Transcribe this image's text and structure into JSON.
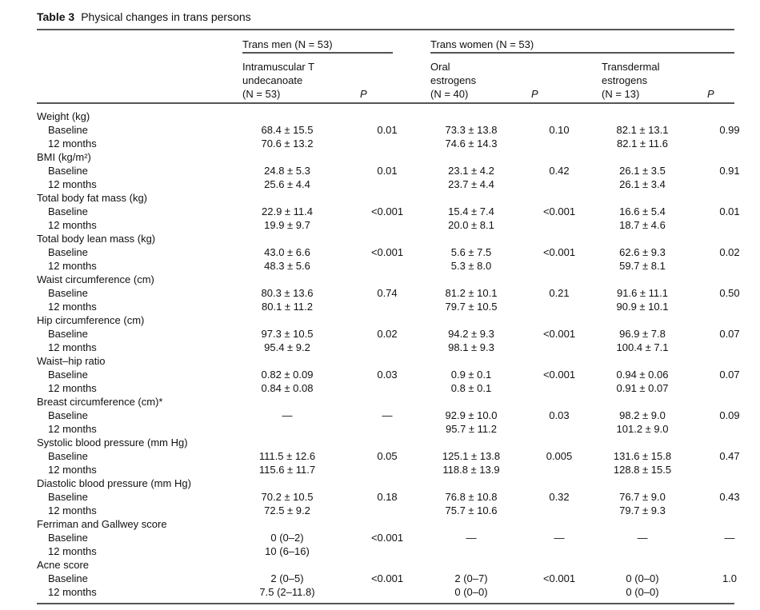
{
  "title": {
    "number": "Table 3",
    "text": "Physical changes in trans persons"
  },
  "header": {
    "group_trans_men": "Trans men (N = 53)",
    "group_trans_women": "Trans women (N = 53)",
    "col_tm": [
      "Intramuscular T",
      "undecanoate",
      "(N = 53)"
    ],
    "col_oral": [
      "Oral",
      "estrogens",
      "(N = 40)"
    ],
    "col_td": [
      "Transdermal",
      "estrogens",
      "(N = 13)"
    ],
    "p_label": "P"
  },
  "groups": [
    {
      "label": "Weight (kg)",
      "rows": [
        {
          "label": "Baseline",
          "values": [
            "68.4 ± 15.5",
            "0.01",
            "73.3 ± 13.8",
            "0.10",
            "82.1 ± 13.1",
            "0.99"
          ]
        },
        {
          "label": "12 months",
          "values": [
            "70.6 ± 13.2",
            "",
            "74.6 ± 14.3",
            "",
            "82.1 ± 11.6",
            ""
          ]
        }
      ]
    },
    {
      "label": "BMI (kg/m²)",
      "rows": [
        {
          "label": "Baseline",
          "values": [
            "24.8 ± 5.3",
            "0.01",
            "23.1 ± 4.2",
            "0.42",
            "26.1 ± 3.5",
            "0.91"
          ]
        },
        {
          "label": "12 months",
          "values": [
            "25.6 ± 4.4",
            "",
            "23.7 ± 4.4",
            "",
            "26.1 ± 3.4",
            ""
          ]
        }
      ]
    },
    {
      "label": "Total body fat mass (kg)",
      "rows": [
        {
          "label": "Baseline",
          "values": [
            "22.9 ± 11.4",
            "<0.001",
            "15.4 ± 7.4",
            "<0.001",
            "16.6 ± 5.4",
            "0.01"
          ]
        },
        {
          "label": "12 months",
          "values": [
            "19.9 ± 9.7",
            "",
            "20.0 ± 8.1",
            "",
            "18.7 ± 4.6",
            ""
          ]
        }
      ]
    },
    {
      "label": "Total body lean mass (kg)",
      "rows": [
        {
          "label": "Baseline",
          "values": [
            "43.0 ± 6.6",
            "<0.001",
            "5.6 ± 7.5",
            "<0.001",
            "62.6 ± 9.3",
            "0.02"
          ]
        },
        {
          "label": "12 months",
          "values": [
            "48.3 ± 5.6",
            "",
            "5.3 ± 8.0",
            "",
            "59.7 ± 8.1",
            ""
          ]
        }
      ]
    },
    {
      "label": "Waist circumference (cm)",
      "rows": [
        {
          "label": "Baseline",
          "values": [
            "80.3 ± 13.6",
            "0.74",
            "81.2 ± 10.1",
            "0.21",
            "91.6 ± 11.1",
            "0.50"
          ]
        },
        {
          "label": "12 months",
          "values": [
            "80.1 ± 11.2",
            "",
            "79.7 ± 10.5",
            "",
            "90.9 ± 10.1",
            ""
          ]
        }
      ]
    },
    {
      "label": "Hip circumference (cm)",
      "rows": [
        {
          "label": "Baseline",
          "values": [
            "97.3 ± 10.5",
            "0.02",
            "94.2 ± 9.3",
            "<0.001",
            "96.9 ± 7.8",
            "0.07"
          ]
        },
        {
          "label": "12 months",
          "values": [
            "95.4 ± 9.2",
            "",
            "98.1 ± 9.3",
            "",
            "100.4 ± 7.1",
            ""
          ]
        }
      ]
    },
    {
      "label": "Waist–hip ratio",
      "rows": [
        {
          "label": "Baseline",
          "values": [
            "0.82 ± 0.09",
            "0.03",
            "0.9 ± 0.1",
            "<0.001",
            "0.94 ± 0.06",
            "0.07"
          ]
        },
        {
          "label": "12 months",
          "values": [
            "0.84 ± 0.08",
            "",
            "0.8 ± 0.1",
            "",
            "0.91 ± 0.07",
            ""
          ]
        }
      ]
    },
    {
      "label": "Breast circumference (cm)*",
      "rows": [
        {
          "label": "Baseline",
          "values": [
            "—",
            "—",
            "92.9 ± 10.0",
            "0.03",
            "98.2 ± 9.0",
            "0.09"
          ]
        },
        {
          "label": "12 months",
          "values": [
            "",
            "",
            "95.7 ± 11.2",
            "",
            "101.2 ± 9.0",
            ""
          ]
        }
      ]
    },
    {
      "label": "Systolic blood pressure (mm Hg)",
      "rows": [
        {
          "label": "Baseline",
          "values": [
            "111.5 ± 12.6",
            "0.05",
            "125.1 ± 13.8",
            "0.005",
            "131.6 ± 15.8",
            "0.47"
          ]
        },
        {
          "label": "12 months",
          "values": [
            "115.6 ± 11.7",
            "",
            "118.8 ± 13.9",
            "",
            "128.8 ± 15.5",
            ""
          ]
        }
      ]
    },
    {
      "label": "Diastolic blood pressure (mm Hg)",
      "rows": [
        {
          "label": "Baseline",
          "values": [
            "70.2 ± 10.5",
            "0.18",
            "76.8 ± 10.8",
            "0.32",
            "76.7 ± 9.0",
            "0.43"
          ]
        },
        {
          "label": "12 months",
          "values": [
            "72.5 ± 9.2",
            "",
            "75.7 ± 10.6",
            "",
            "79.7 ± 9.3",
            ""
          ]
        }
      ]
    },
    {
      "label": "Ferriman and Gallwey score",
      "rows": [
        {
          "label": "Baseline",
          "values": [
            "0 (0–2)",
            "<0.001",
            "—",
            "—",
            "—",
            "—"
          ]
        },
        {
          "label": "12 months",
          "values": [
            "10 (6–16)",
            "",
            "",
            "",
            "",
            ""
          ]
        }
      ]
    },
    {
      "label": "Acne score",
      "rows": [
        {
          "label": "Baseline",
          "values": [
            "2 (0–5)",
            "<0.001",
            "2 (0–7)",
            "<0.001",
            "0 (0–0)",
            "1.0"
          ]
        },
        {
          "label": "12 months",
          "values": [
            "7.5 (2–11.8)",
            "",
            "0 (0–0)",
            "",
            "0 (0–0)",
            ""
          ]
        }
      ]
    }
  ]
}
